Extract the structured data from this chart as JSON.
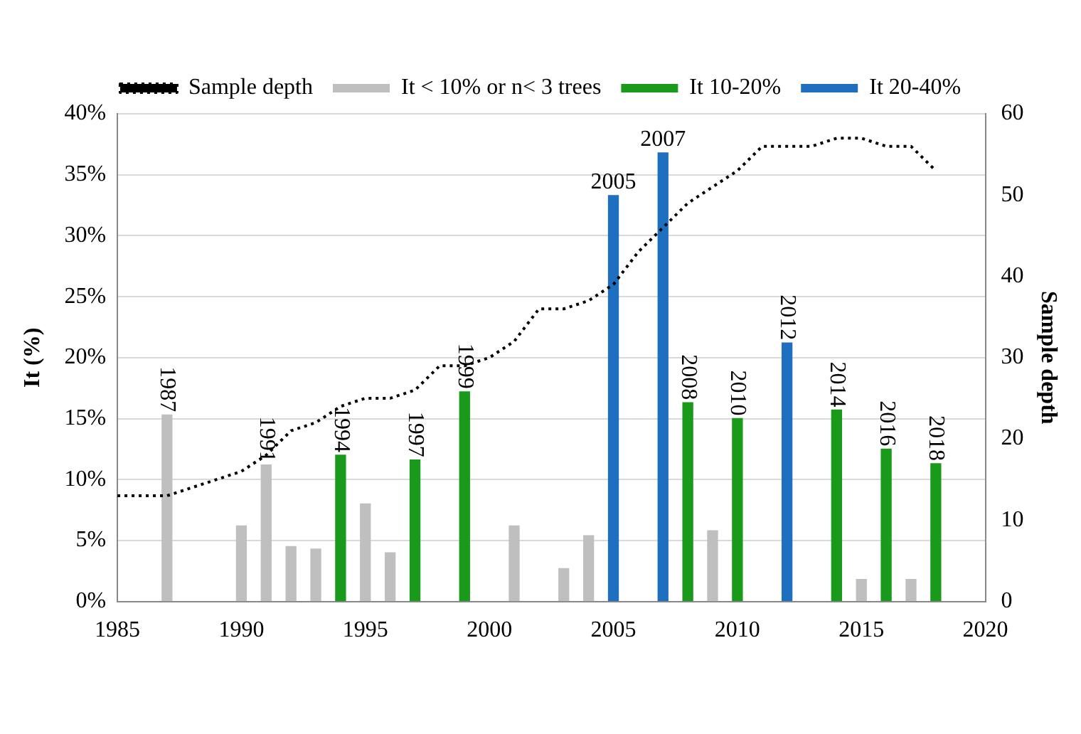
{
  "chart_data": {
    "type": "bar",
    "ylabel": "It (%)",
    "y2label": "Sample depth",
    "xlim": [
      1985,
      2020
    ],
    "xticks": [
      1985,
      1990,
      1995,
      2000,
      2005,
      2010,
      2015,
      2020
    ],
    "ylim": [
      0,
      40
    ],
    "yticks": [
      {
        "value": 0,
        "label": "0%"
      },
      {
        "value": 5,
        "label": "5%"
      },
      {
        "value": 10,
        "label": "10%"
      },
      {
        "value": 15,
        "label": "15%"
      },
      {
        "value": 20,
        "label": "20%"
      },
      {
        "value": 25,
        "label": "25%"
      },
      {
        "value": 30,
        "label": "30%"
      },
      {
        "value": 35,
        "label": "35%"
      },
      {
        "value": 40,
        "label": "40%"
      }
    ],
    "y2lim": [
      0,
      60
    ],
    "y2ticks": [
      0,
      10,
      20,
      30,
      40,
      50,
      60
    ],
    "grid": "y",
    "legend": "top",
    "series": [
      {
        "name": "It < 10% or n< 3 trees",
        "color": "#bfbfbf",
        "x": [
          1987,
          1990,
          1991,
          1992,
          1993,
          1995,
          1996,
          2001,
          2003,
          2004,
          2009,
          2015,
          2017
        ],
        "values": [
          15.3,
          6.2,
          11.2,
          4.5,
          4.3,
          8.0,
          4.0,
          6.2,
          2.7,
          5.4,
          5.8,
          1.8,
          1.8
        ]
      },
      {
        "name": "It 10-20%",
        "color": "#1a9a1a",
        "x": [
          1994,
          1997,
          1999,
          2008,
          2010,
          2014,
          2016,
          2018
        ],
        "values": [
          12.0,
          11.6,
          17.2,
          16.3,
          15.0,
          15.7,
          12.5,
          11.3
        ]
      },
      {
        "name": "It 20-40%",
        "color": "#1f6fc0",
        "x": [
          2005,
          2007,
          2012
        ],
        "values": [
          33.3,
          36.8,
          21.2
        ]
      },
      {
        "name": "Sample depth",
        "type": "line",
        "axis": "y2",
        "color": "#000000",
        "line_style": "dotted",
        "marker": "none",
        "x": [
          1985,
          1987,
          1990,
          1991,
          1992,
          1993,
          1994,
          1995,
          1996,
          1997,
          1998,
          1999,
          2000,
          2001,
          2002,
          2003,
          2004,
          2005,
          2006,
          2007,
          2008,
          2009,
          2010,
          2011,
          2012,
          2013,
          2014,
          2015,
          2016,
          2017,
          2018
        ],
        "values": [
          13,
          13,
          16,
          18,
          21,
          22,
          24,
          25,
          25,
          26,
          29,
          29,
          30,
          32,
          36,
          36,
          37,
          39,
          43,
          46,
          49,
          51,
          53,
          56,
          56,
          56,
          57,
          57,
          56,
          56,
          53
        ]
      }
    ],
    "annotations": [
      {
        "text": "1987",
        "x": 1987,
        "y": 15.3
      },
      {
        "text": "1991",
        "x": 1991,
        "y": 11.2
      },
      {
        "text": "1994",
        "x": 1994,
        "y": 12.0
      },
      {
        "text": "1997",
        "x": 1997,
        "y": 11.6
      },
      {
        "text": "1999",
        "x": 1999,
        "y": 17.2
      },
      {
        "text": "2005",
        "x": 2005,
        "y": 33.3
      },
      {
        "text": "2007",
        "x": 2007,
        "y": 36.8
      },
      {
        "text": "2008",
        "x": 2008,
        "y": 16.3
      },
      {
        "text": "2010",
        "x": 2010,
        "y": 15.0
      },
      {
        "text": "2012",
        "x": 2012,
        "y": 21.2
      },
      {
        "text": "2014",
        "x": 2014,
        "y": 15.7
      },
      {
        "text": "2016",
        "x": 2016,
        "y": 12.5
      },
      {
        "text": "2018",
        "x": 2018,
        "y": 11.3
      }
    ]
  }
}
